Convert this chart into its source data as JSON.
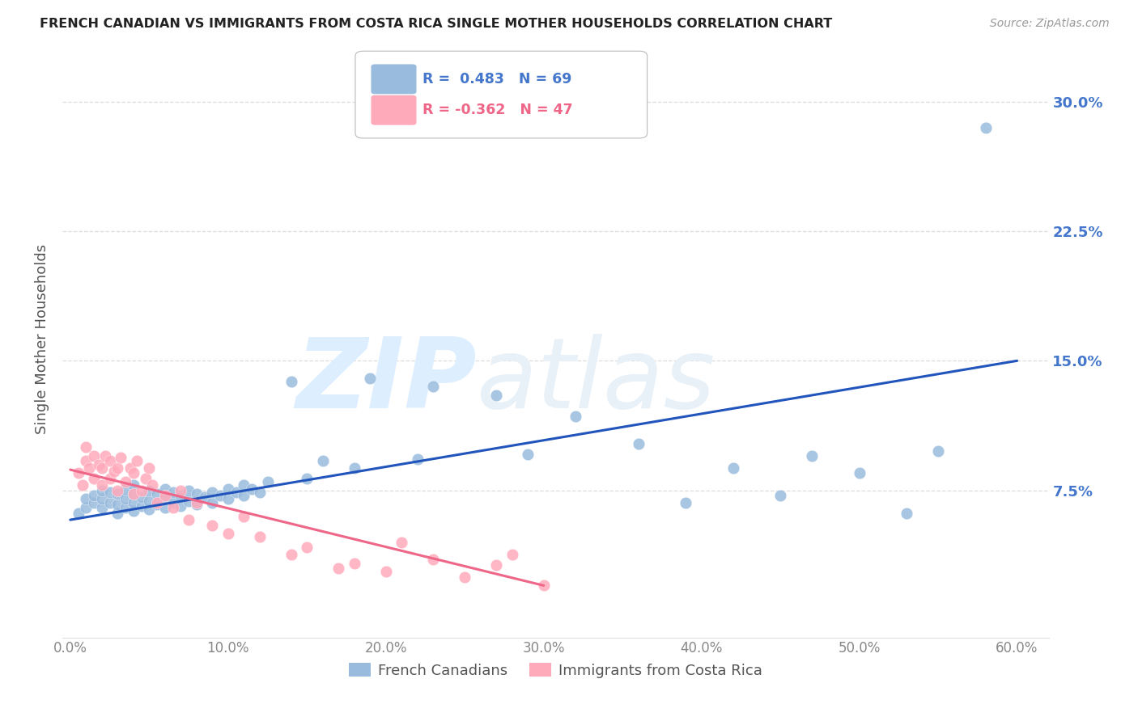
{
  "title": "FRENCH CANADIAN VS IMMIGRANTS FROM COSTA RICA SINGLE MOTHER HOUSEHOLDS CORRELATION CHART",
  "source": "Source: ZipAtlas.com",
  "ylabel": "Single Mother Households",
  "xlabel_ticks": [
    "0.0%",
    "10.0%",
    "20.0%",
    "30.0%",
    "40.0%",
    "50.0%",
    "60.0%"
  ],
  "xlabel_vals": [
    0.0,
    0.1,
    0.2,
    0.3,
    0.4,
    0.5,
    0.6
  ],
  "ytick_labels": [
    "7.5%",
    "15.0%",
    "22.5%",
    "30.0%"
  ],
  "ytick_vals": [
    0.075,
    0.15,
    0.225,
    0.3
  ],
  "xlim": [
    -0.005,
    0.62
  ],
  "ylim": [
    -0.01,
    0.335
  ],
  "blue_R": 0.483,
  "blue_N": 69,
  "pink_R": -0.362,
  "pink_N": 47,
  "legend_label_blue": "French Canadians",
  "legend_label_pink": "Immigrants from Costa Rica",
  "blue_color": "#99BBDD",
  "pink_color": "#FFAABB",
  "trendline_blue": "#2255BB",
  "trendline_pink": "#EE6688",
  "watermark_zip": "ZIP",
  "watermark_atlas": "atlas",
  "watermark_color": "#DDEEFF",
  "background_color": "#FFFFFF",
  "grid_color": "#DDDDDD",
  "title_color": "#222222",
  "axis_label_color": "#555555",
  "tick_color_right": "#4477CC",
  "tick_color_bottom": "#888888",
  "blue_scatter_x": [
    0.005,
    0.01,
    0.01,
    0.015,
    0.015,
    0.02,
    0.02,
    0.02,
    0.025,
    0.025,
    0.03,
    0.03,
    0.03,
    0.035,
    0.035,
    0.035,
    0.04,
    0.04,
    0.04,
    0.04,
    0.045,
    0.045,
    0.05,
    0.05,
    0.05,
    0.055,
    0.055,
    0.06,
    0.06,
    0.06,
    0.065,
    0.065,
    0.07,
    0.07,
    0.075,
    0.075,
    0.08,
    0.08,
    0.085,
    0.09,
    0.09,
    0.095,
    0.1,
    0.1,
    0.105,
    0.11,
    0.11,
    0.115,
    0.12,
    0.125,
    0.14,
    0.15,
    0.16,
    0.18,
    0.19,
    0.22,
    0.23,
    0.27,
    0.29,
    0.32,
    0.36,
    0.39,
    0.42,
    0.45,
    0.47,
    0.5,
    0.53,
    0.55,
    0.58
  ],
  "blue_scatter_y": [
    0.062,
    0.065,
    0.07,
    0.068,
    0.072,
    0.065,
    0.07,
    0.075,
    0.068,
    0.074,
    0.062,
    0.067,
    0.073,
    0.065,
    0.07,
    0.076,
    0.063,
    0.068,
    0.073,
    0.078,
    0.066,
    0.071,
    0.064,
    0.069,
    0.075,
    0.067,
    0.073,
    0.065,
    0.07,
    0.076,
    0.068,
    0.074,
    0.066,
    0.072,
    0.069,
    0.075,
    0.067,
    0.073,
    0.071,
    0.068,
    0.074,
    0.072,
    0.07,
    0.076,
    0.074,
    0.072,
    0.078,
    0.076,
    0.074,
    0.08,
    0.138,
    0.082,
    0.092,
    0.088,
    0.14,
    0.093,
    0.135,
    0.13,
    0.096,
    0.118,
    0.102,
    0.068,
    0.088,
    0.072,
    0.095,
    0.085,
    0.062,
    0.098,
    0.285
  ],
  "pink_scatter_x": [
    0.005,
    0.008,
    0.01,
    0.01,
    0.012,
    0.015,
    0.015,
    0.018,
    0.02,
    0.02,
    0.022,
    0.025,
    0.025,
    0.028,
    0.03,
    0.03,
    0.032,
    0.035,
    0.038,
    0.04,
    0.04,
    0.042,
    0.045,
    0.048,
    0.05,
    0.052,
    0.055,
    0.06,
    0.065,
    0.07,
    0.075,
    0.08,
    0.09,
    0.1,
    0.11,
    0.12,
    0.14,
    0.15,
    0.17,
    0.18,
    0.2,
    0.21,
    0.23,
    0.25,
    0.27,
    0.28,
    0.3
  ],
  "pink_scatter_y": [
    0.085,
    0.078,
    0.092,
    0.1,
    0.088,
    0.082,
    0.095,
    0.09,
    0.078,
    0.088,
    0.095,
    0.082,
    0.092,
    0.086,
    0.075,
    0.088,
    0.094,
    0.08,
    0.088,
    0.073,
    0.085,
    0.092,
    0.075,
    0.082,
    0.088,
    0.078,
    0.068,
    0.072,
    0.065,
    0.075,
    0.058,
    0.068,
    0.055,
    0.05,
    0.06,
    0.048,
    0.038,
    0.042,
    0.03,
    0.033,
    0.028,
    0.045,
    0.035,
    0.025,
    0.032,
    0.038,
    0.02
  ],
  "blue_trend_x": [
    0.0,
    0.6
  ],
  "blue_trend_y": [
    0.058,
    0.15
  ],
  "pink_trend_x": [
    0.0,
    0.3
  ],
  "pink_trend_y": [
    0.087,
    0.02
  ]
}
